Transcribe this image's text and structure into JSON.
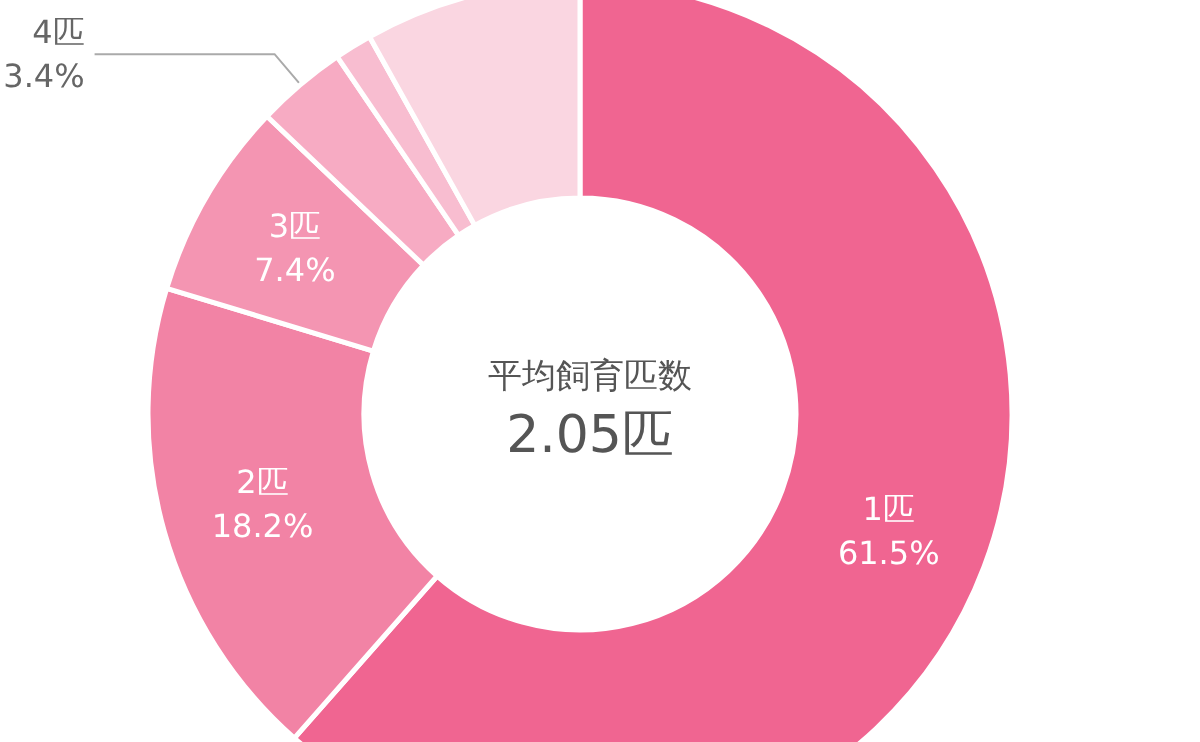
{
  "chart_data": {
    "type": "donut",
    "title": "平均飼育匹数",
    "subtitle": "2.05匹",
    "categories": [
      "1匹",
      "2匹",
      "3匹",
      "4匹",
      null,
      null
    ],
    "values": [
      61.5,
      18.2,
      7.4,
      3.4,
      1.4,
      8.1
    ],
    "value_labels": [
      "61.5%",
      "18.2%",
      "7.4%",
      "3.4%",
      null,
      null
    ],
    "colors": [
      "#f06591",
      "#f283a5",
      "#f495b2",
      "#f7abc3",
      "#f8bdd0",
      "#fad6e1"
    ]
  }
}
